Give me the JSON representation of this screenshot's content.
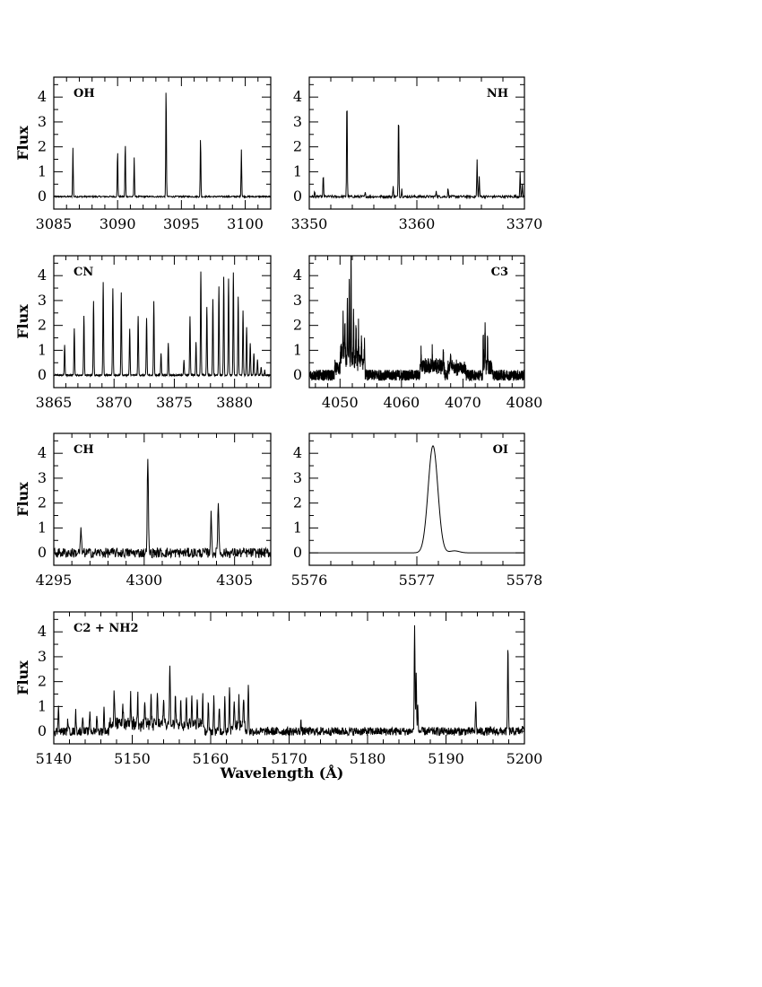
{
  "chart_data": [
    {
      "type": "line",
      "label": "OH",
      "xlim": [
        3085,
        3102
      ],
      "ylim": [
        -0.5,
        4.8
      ],
      "xticks": [
        3085,
        3090,
        3095,
        3100
      ],
      "yticks": [
        0,
        1,
        2,
        3,
        4
      ],
      "ylabel": "Flux",
      "xlabel": "",
      "noise": 0.03,
      "noise_step": 0.03,
      "base_width": 0.025,
      "lines": [
        [
          3086.5,
          1.95
        ],
        [
          3090.0,
          1.9
        ],
        [
          3090.6,
          2.2
        ],
        [
          3091.3,
          1.55
        ],
        [
          3093.8,
          4.5
        ],
        [
          3096.5,
          2.45
        ],
        [
          3099.7,
          1.9
        ]
      ],
      "bands": []
    },
    {
      "type": "line",
      "label": "NH",
      "xlim": [
        3350,
        3370
      ],
      "ylim": [
        -0.5,
        4.8
      ],
      "xticks": [
        3350,
        3360,
        3370
      ],
      "yticks": [
        0,
        1,
        2,
        3,
        4
      ],
      "ylabel": "",
      "xlabel": "",
      "noise": 0.05,
      "noise_step": 0.04,
      "base_width": 0.03,
      "lines": [
        [
          3350.5,
          0.2
        ],
        [
          3351.3,
          0.9
        ],
        [
          3353.5,
          4.3
        ],
        [
          3355.2,
          0.15
        ],
        [
          3357.8,
          0.4
        ],
        [
          3358.3,
          3.6
        ],
        [
          3358.6,
          0.3
        ],
        [
          3361.8,
          0.25
        ],
        [
          3362.9,
          0.35
        ],
        [
          3365.6,
          1.5
        ],
        [
          3365.8,
          0.8
        ],
        [
          3369.6,
          0.95
        ],
        [
          3369.8,
          0.5
        ]
      ],
      "bands": []
    },
    {
      "type": "line",
      "label": "CN",
      "xlim": [
        3865,
        3883
      ],
      "ylim": [
        -0.5,
        4.8
      ],
      "xticks": [
        3865,
        3870,
        3875,
        3880
      ],
      "yticks": [
        0,
        1,
        2,
        3,
        4
      ],
      "ylabel": "Flux",
      "xlabel": "",
      "noise": 0.03,
      "noise_step": 0.02,
      "base_width": 0.03,
      "lines": [
        [
          3865.9,
          1.2
        ],
        [
          3866.7,
          1.9
        ],
        [
          3867.5,
          2.4
        ],
        [
          3868.3,
          3.0
        ],
        [
          3869.1,
          3.75
        ],
        [
          3869.9,
          3.5
        ],
        [
          3870.6,
          3.3
        ],
        [
          3871.3,
          1.85
        ],
        [
          3872.0,
          2.4
        ],
        [
          3872.7,
          2.3
        ],
        [
          3873.3,
          2.95
        ],
        [
          3873.9,
          0.9
        ],
        [
          3874.5,
          1.3
        ],
        [
          3875.8,
          0.6
        ],
        [
          3876.3,
          2.35
        ],
        [
          3876.8,
          1.35
        ],
        [
          3877.2,
          4.15
        ],
        [
          3877.7,
          2.75
        ],
        [
          3878.2,
          3.05
        ],
        [
          3878.7,
          3.55
        ],
        [
          3879.1,
          3.95
        ],
        [
          3879.5,
          3.9
        ],
        [
          3879.9,
          4.1
        ],
        [
          3880.3,
          3.15
        ],
        [
          3880.7,
          2.6
        ],
        [
          3881.0,
          1.9
        ],
        [
          3881.3,
          1.3
        ],
        [
          3881.6,
          0.9
        ],
        [
          3881.9,
          0.6
        ],
        [
          3882.2,
          0.35
        ],
        [
          3882.5,
          0.2
        ]
      ],
      "bands": []
    },
    {
      "type": "line",
      "label": "C3",
      "xlim": [
        4045,
        4080
      ],
      "ylim": [
        -0.5,
        4.8
      ],
      "xticks": [
        4050,
        4060,
        4070,
        4080
      ],
      "yticks": [
        0,
        1,
        2,
        3,
        4
      ],
      "ylabel": "",
      "xlabel": "",
      "noise": 0.22,
      "noise_step": 0.02,
      "base_width": 0.04,
      "lines": [
        [
          4050.5,
          1.5
        ],
        [
          4050.8,
          1.2
        ],
        [
          4051.2,
          2.5
        ],
        [
          4051.5,
          3.2
        ],
        [
          4051.8,
          4.35
        ],
        [
          4052.2,
          2.0
        ],
        [
          4052.6,
          1.5
        ],
        [
          4053.0,
          1.3
        ],
        [
          4053.5,
          1.0
        ],
        [
          4054.0,
          0.8
        ],
        [
          4063.2,
          0.7
        ],
        [
          4065.0,
          0.55
        ],
        [
          4066.8,
          0.6
        ],
        [
          4068.0,
          0.65
        ],
        [
          4073.3,
          1.5
        ],
        [
          4073.6,
          1.75
        ],
        [
          4074.0,
          1.3
        ]
      ],
      "bands": [
        [
          4052.0,
          4.0,
          0.55
        ],
        [
          4050.0,
          1.8,
          0.3
        ],
        [
          4065.0,
          4.0,
          0.35
        ],
        [
          4069.0,
          3.0,
          0.3
        ],
        [
          4074.0,
          1.5,
          0.35
        ]
      ]
    },
    {
      "type": "line",
      "label": "CH",
      "xlim": [
        4295,
        4307
      ],
      "ylim": [
        -0.5,
        4.8
      ],
      "xticks": [
        4295,
        4300,
        4305
      ],
      "yticks": [
        0,
        1,
        2,
        3,
        4
      ],
      "ylabel": "Flux",
      "xlabel": "",
      "noise": 0.2,
      "noise_step": 0.025,
      "base_width": 0.03,
      "lines": [
        [
          4296.5,
          0.9
        ],
        [
          4300.2,
          3.9
        ],
        [
          4303.7,
          1.5
        ],
        [
          4304.1,
          2.15
        ]
      ],
      "bands": []
    },
    {
      "type": "line",
      "label": "OI",
      "xlim": [
        5576,
        5578
      ],
      "ylim": [
        -0.5,
        4.8
      ],
      "xticks": [
        5576,
        5577,
        5578
      ],
      "yticks": [
        0,
        1,
        2,
        3,
        4
      ],
      "ylabel": "",
      "xlabel": "",
      "noise": 0.0,
      "noise_step": 0.002,
      "base_width": 0.045,
      "lines": [
        [
          5577.15,
          4.3
        ],
        [
          5577.35,
          0.08
        ]
      ],
      "bands": []
    },
    {
      "type": "line",
      "label": "C2 + NH2",
      "xlim": [
        5140,
        5200
      ],
      "ylim": [
        -0.5,
        4.8
      ],
      "xticks": [
        5140,
        5150,
        5160,
        5170,
        5180,
        5190,
        5200
      ],
      "yticks": [
        0,
        1,
        2,
        3,
        4
      ],
      "ylabel": "Flux",
      "xlabel": "Wavelength (Å)",
      "noise": 0.17,
      "noise_step": 0.04,
      "base_width": 0.05,
      "lines": [
        [
          5140.6,
          1.1
        ],
        [
          5141.8,
          0.5
        ],
        [
          5142.8,
          0.75
        ],
        [
          5143.7,
          0.7
        ],
        [
          5144.6,
          0.85
        ],
        [
          5145.5,
          0.7
        ],
        [
          5146.4,
          0.9
        ],
        [
          5147.7,
          1.25
        ],
        [
          5148.8,
          0.8
        ],
        [
          5149.8,
          1.15
        ],
        [
          5150.7,
          1.2
        ],
        [
          5151.6,
          0.9
        ],
        [
          5152.4,
          1.1
        ],
        [
          5153.2,
          1.2
        ],
        [
          5154.0,
          1.0
        ],
        [
          5154.8,
          2.45
        ],
        [
          5155.5,
          1.25
        ],
        [
          5156.2,
          1.0
        ],
        [
          5156.9,
          1.1
        ],
        [
          5157.6,
          1.25
        ],
        [
          5158.3,
          1.0
        ],
        [
          5159.0,
          1.2
        ],
        [
          5159.7,
          1.1
        ],
        [
          5160.4,
          1.3
        ],
        [
          5161.1,
          1.05
        ],
        [
          5161.8,
          1.35
        ],
        [
          5162.4,
          1.75
        ],
        [
          5163.0,
          1.1
        ],
        [
          5163.6,
          1.2
        ],
        [
          5164.2,
          1.3
        ],
        [
          5164.8,
          1.95
        ],
        [
          5171.5,
          0.4
        ],
        [
          5176.0,
          0.1
        ],
        [
          5186.0,
          4.2
        ],
        [
          5186.2,
          2.2
        ],
        [
          5186.4,
          1.0
        ],
        [
          5193.8,
          1.15
        ],
        [
          5197.9,
          3.45
        ],
        [
          5199.8,
          0.3
        ]
      ],
      "bands": [
        [
          5153.0,
          12.0,
          0.3
        ],
        [
          5163.5,
          1.8,
          0.25
        ]
      ]
    }
  ]
}
